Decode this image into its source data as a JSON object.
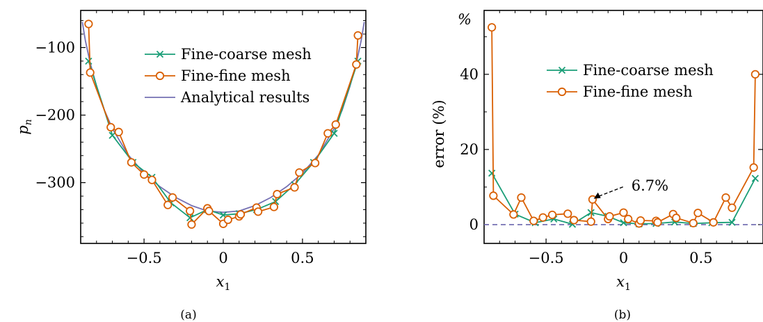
{
  "captions": [
    "(a)",
    "(b)"
  ],
  "colors": {
    "fine_coarse": "#1a9e77",
    "fine_fine": "#d95f02",
    "analytical": "#7570b3",
    "zero_line": "#7570b3"
  },
  "chart_data": [
    {
      "type": "line",
      "panel": "(a)",
      "xlabel": "x",
      "xlabel_sub": "1",
      "ylabel": "p",
      "ylabel_sub": "n",
      "xlim": [
        -0.9,
        0.9
      ],
      "ylim": [
        -390,
        -45
      ],
      "xticks": [
        -0.5,
        0,
        0.5
      ],
      "xtick_labels": [
        "−0.5",
        "0",
        "0.5"
      ],
      "yticks": [
        -100,
        -200,
        -300
      ],
      "ytick_labels": [
        "−100",
        "−200",
        "−300"
      ],
      "legend_position": "top-right",
      "series": [
        {
          "name": "Fine-coarse mesh",
          "marker": "x",
          "color": "#1a9e77",
          "x": [
            -0.85,
            -0.7,
            -0.57,
            -0.45,
            -0.33,
            -0.21,
            -0.1,
            0.0,
            0.1,
            0.21,
            0.33,
            0.45,
            0.57,
            0.7,
            0.85
          ],
          "y": [
            -120,
            -230,
            -270,
            -292,
            -330,
            -352,
            -340,
            -348,
            -346,
            -340,
            -328,
            -303,
            -270,
            -227,
            -120
          ]
        },
        {
          "name": "Fine-fine mesh",
          "marker": "o",
          "color": "#d95f02",
          "x": [
            -0.85,
            -0.84,
            -0.71,
            -0.66,
            -0.58,
            -0.5,
            -0.45,
            -0.35,
            -0.32,
            -0.21,
            -0.2,
            -0.1,
            -0.09,
            0.0,
            0.03,
            0.1,
            0.11,
            0.21,
            0.22,
            0.32,
            0.34,
            0.45,
            0.48,
            0.58,
            0.66,
            0.71,
            0.84,
            0.85
          ],
          "y": [
            -65,
            -137,
            -218,
            -225,
            -270,
            -288,
            -296,
            -333,
            -322,
            -342,
            -362,
            -338,
            -342,
            -361,
            -355,
            -350,
            -347,
            -337,
            -343,
            -336,
            -317,
            -307,
            -285,
            -271,
            -227,
            -214,
            -125,
            -82
          ]
        },
        {
          "name": "Analytical results",
          "marker": "none",
          "color": "#7570b3",
          "x": [
            -0.89,
            -0.87,
            -0.84,
            -0.8,
            -0.75,
            -0.7,
            -0.6,
            -0.5,
            -0.4,
            -0.3,
            -0.2,
            -0.1,
            0.0,
            0.1,
            0.2,
            0.3,
            0.4,
            0.5,
            0.6,
            0.7,
            0.75,
            0.8,
            0.84,
            0.87,
            0.89
          ],
          "y": [
            -62,
            -90,
            -123,
            -157,
            -193,
            -220,
            -259,
            -286,
            -306,
            -322,
            -334,
            -342,
            -344,
            -342,
            -334,
            -322,
            -306,
            -286,
            -259,
            -220,
            -193,
            -157,
            -123,
            -90,
            -62
          ]
        }
      ]
    },
    {
      "type": "line",
      "panel": "(b)",
      "xlabel": "x",
      "xlabel_sub": "1",
      "ylabel": "error (%)",
      "corner_label": "%",
      "xlim": [
        -0.9,
        0.9
      ],
      "ylim": [
        -5,
        57
      ],
      "xticks": [
        -0.5,
        0,
        0.5
      ],
      "xtick_labels": [
        "−0.5",
        "0",
        "0.5"
      ],
      "yticks": [
        0,
        20,
        40
      ],
      "ytick_labels": [
        "0",
        "20",
        "40"
      ],
      "legend_position": "top-right",
      "annotation": {
        "text": "6.7%",
        "x": -0.21,
        "y": 6.7
      },
      "series": [
        {
          "name": "Fine-coarse mesh",
          "marker": "x",
          "color": "#1a9e77",
          "x": [
            -0.85,
            -0.7,
            -0.57,
            -0.45,
            -0.33,
            -0.21,
            -0.1,
            0.0,
            0.1,
            0.21,
            0.33,
            0.45,
            0.57,
            0.7,
            0.85
          ],
          "y": [
            13.7,
            2.8,
            0.5,
            1.5,
            0.1,
            3.2,
            2.2,
            0.5,
            0.2,
            0.3,
            0.7,
            0.3,
            0.5,
            0.6,
            12.3
          ]
        },
        {
          "name": "Fine-fine mesh",
          "marker": "o",
          "color": "#d95f02",
          "x": [
            -0.85,
            -0.84,
            -0.71,
            -0.66,
            -0.58,
            -0.52,
            -0.46,
            -0.36,
            -0.32,
            -0.21,
            -0.2,
            -0.1,
            -0.09,
            0.0,
            0.03,
            0.1,
            0.11,
            0.21,
            0.22,
            0.32,
            0.34,
            0.45,
            0.48,
            0.58,
            0.66,
            0.7,
            0.84,
            0.85
          ],
          "y": [
            52.5,
            7.7,
            2.7,
            7.2,
            1.0,
            1.9,
            2.6,
            2.9,
            1.2,
            0.8,
            6.7,
            1.5,
            2.2,
            3.2,
            1.5,
            0.3,
            1.1,
            1.0,
            0.6,
            2.8,
            1.8,
            0.4,
            3.1,
            0.6,
            7.2,
            4.5,
            15.2,
            40.0
          ]
        },
        {
          "name": "",
          "marker": "none",
          "style": "dashed",
          "color": "#7570b3",
          "x": [
            -0.9,
            0.9
          ],
          "y": [
            0,
            0
          ]
        }
      ]
    }
  ]
}
